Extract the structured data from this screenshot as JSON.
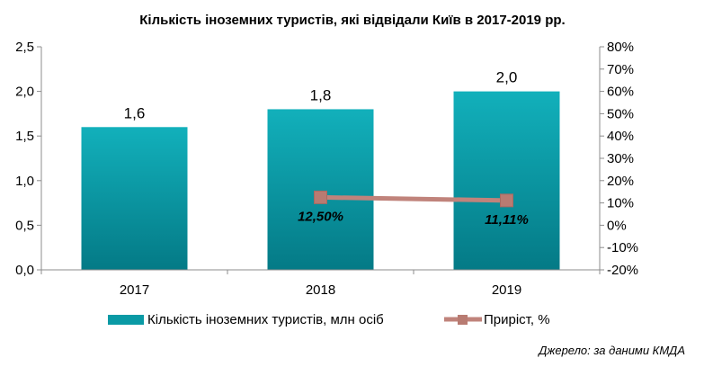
{
  "chart_data": {
    "type": "bar",
    "title": "Кількість іноземних туристів, які відвідали Київ в 2017-2019 рр.",
    "categories": [
      "2017",
      "2018",
      "2019"
    ],
    "series": [
      {
        "name": "Кількість іноземних туристів, млн осіб",
        "type": "bar",
        "axis": "left",
        "values": [
          1.6,
          1.8,
          2.0
        ],
        "labels": [
          "1,6",
          "1,8",
          "2,0"
        ],
        "color": "#0a9aa5"
      },
      {
        "name": "Приріст, %",
        "type": "line",
        "axis": "right",
        "values": [
          null,
          12.5,
          11.11
        ],
        "labels": [
          "",
          "12,50%",
          "11,11%"
        ],
        "color": "#c0837b"
      }
    ],
    "left_axis": {
      "range": [
        0,
        2.5
      ],
      "ticks": [
        0,
        0.5,
        1.0,
        1.5,
        2.0,
        2.5
      ],
      "tick_labels": [
        "0,0",
        "0,5",
        "1,0",
        "1,5",
        "2,0",
        "2,5"
      ]
    },
    "right_axis": {
      "range": [
        -20,
        80
      ],
      "ticks": [
        -20,
        -10,
        0,
        10,
        20,
        30,
        40,
        50,
        60,
        70,
        80
      ],
      "tick_labels": [
        "-20%",
        "-10%",
        "0%",
        "10%",
        "20%",
        "30%",
        "40%",
        "50%",
        "60%",
        "70%",
        "80%"
      ]
    },
    "grid": false,
    "legend": "bottom",
    "source": "Джерело: за даними КМДА"
  }
}
